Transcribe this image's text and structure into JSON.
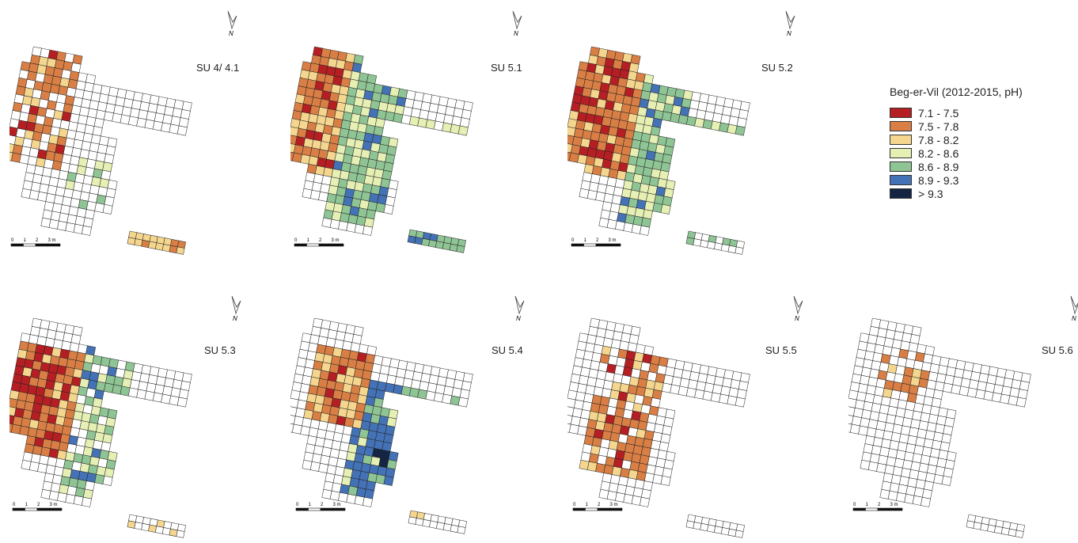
{
  "legend": {
    "title": "Beg-er-Vil (2012-2015, pH)",
    "classes": [
      {
        "label": "7.1 - 7.5",
        "color": "#b51f23"
      },
      {
        "label": "7.5 - 7.8",
        "color": "#d97f45"
      },
      {
        "label": "7.8 - 8.2",
        "color": "#f5d68e"
      },
      {
        "label": "8.2 - 8.6",
        "color": "#e6efb4"
      },
      {
        "label": "8.6 - 8.9",
        "color": "#8fc495"
      },
      {
        "label": "8.9 - 9.3",
        "color": "#4472b6"
      },
      {
        "label": "> 9.3",
        "color": "#142544"
      }
    ]
  },
  "north_arrow": {
    "label": "N",
    "icon": "north-arrow-icon"
  },
  "scale_bar": {
    "ticks": [
      "0",
      "1",
      "2",
      "3 m"
    ]
  },
  "panels": [
    {
      "label": "SU 4/ 4.1"
    },
    {
      "label": "SU 5.1"
    },
    {
      "label": "SU 5.2"
    },
    {
      "label": "SU 5.3"
    },
    {
      "label": "SU 5.4"
    },
    {
      "label": "SU 5.5"
    },
    {
      "label": "SU 5.6"
    }
  ]
}
